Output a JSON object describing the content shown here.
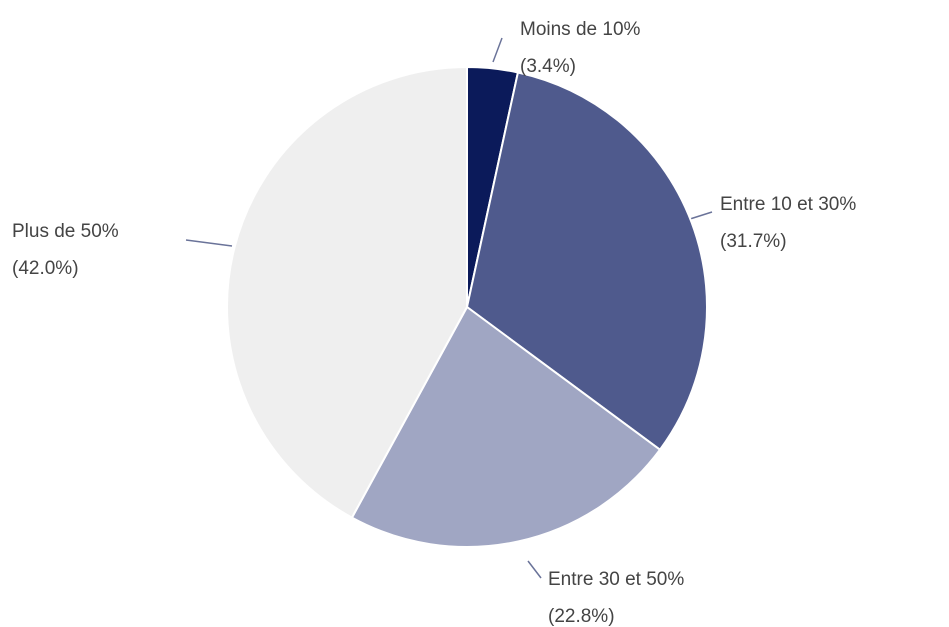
{
  "chart_data": {
    "type": "pie",
    "categories": [
      "Moins de 10%",
      "Entre 10 et 30%",
      "Entre 30 et 50%",
      "Plus de 50%"
    ],
    "values": [
      3.4,
      31.7,
      22.8,
      42.0
    ],
    "value_labels": [
      "(3.4%)",
      "(31.7%)",
      "(22.8%)",
      "(42.0%)"
    ],
    "colors": [
      "#0b1a5a",
      "#4f5a8d",
      "#a0a6c3",
      "#efefef"
    ]
  }
}
